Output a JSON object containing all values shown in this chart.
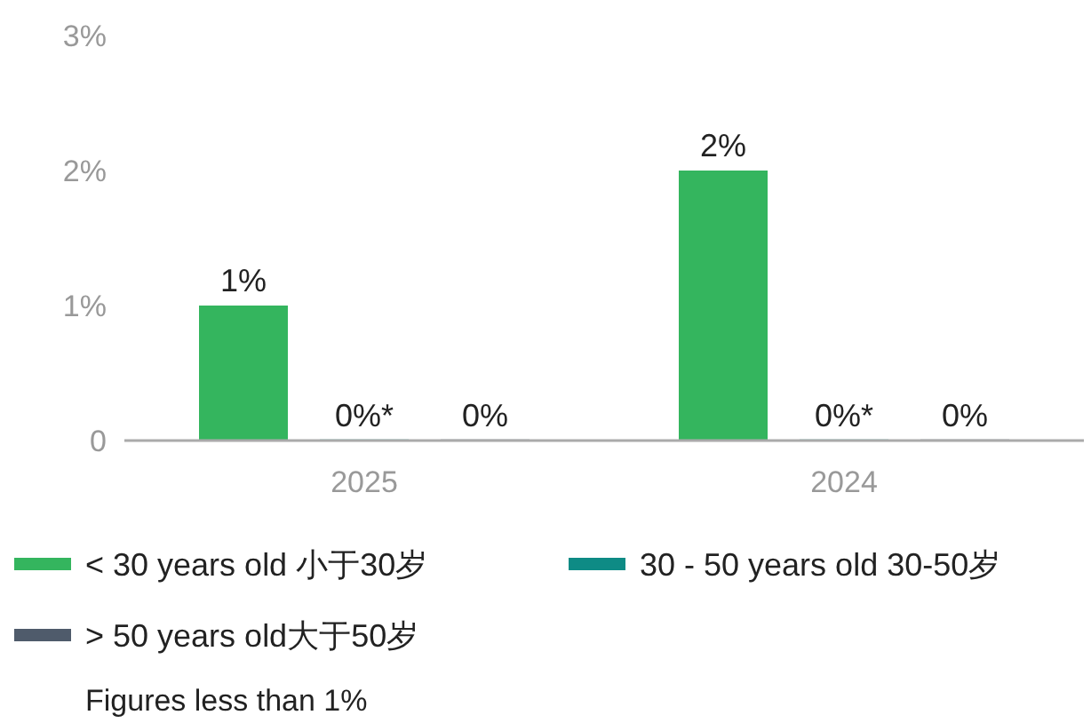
{
  "chart_data": {
    "type": "bar",
    "categories": [
      "2025",
      "2024"
    ],
    "series": [
      {
        "name": "< 30 years old 小于30岁",
        "color": "#34b55e",
        "values": [
          1,
          2
        ],
        "value_labels": [
          "1%",
          "2%"
        ]
      },
      {
        "name": "30 - 50 years old 30-50岁",
        "color": "#0e8b85",
        "values": [
          0,
          0
        ],
        "value_labels": [
          "0%*",
          "0%*"
        ]
      },
      {
        "name": "> 50 years old大于50岁",
        "color": "#4f5b6b",
        "values": [
          0,
          0
        ],
        "value_labels": [
          "0%",
          "0%"
        ]
      }
    ],
    "ylim": [
      0,
      3
    ],
    "yticks": [
      {
        "value": 0,
        "label": "0"
      },
      {
        "value": 1,
        "label": "1%"
      },
      {
        "value": 2,
        "label": "2%"
      },
      {
        "value": 3,
        "label": "3%"
      }
    ],
    "grid": false,
    "legend": "bottom",
    "annotations": [
      "Figures less than 1%"
    ]
  }
}
